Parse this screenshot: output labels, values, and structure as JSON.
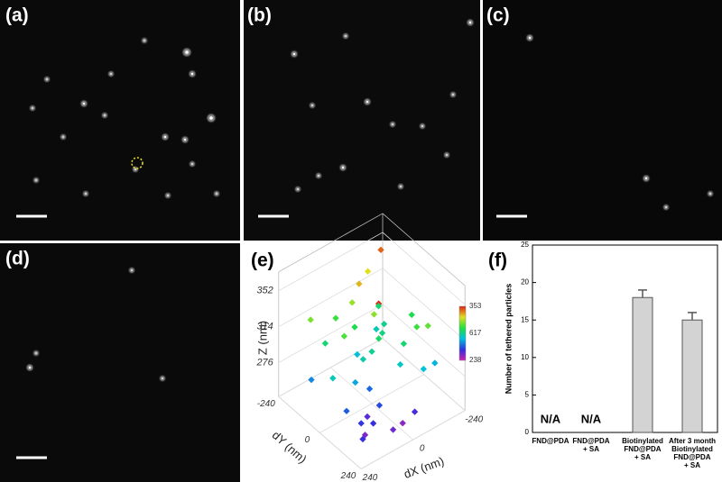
{
  "panels": [
    {
      "label": "(a)"
    },
    {
      "label": "(b)"
    },
    {
      "label": "(c)"
    },
    {
      "label": "(d)"
    },
    {
      "label": "(e)"
    },
    {
      "label": "(f)"
    }
  ],
  "chart_data": [
    {
      "type": "scatter3d",
      "zlabel": "Z (nm)",
      "ylabel": "dY (nm)",
      "xlabel": "dX (nm)",
      "xlim": [
        -240,
        240
      ],
      "ylim": [
        -240,
        240
      ],
      "zlim": [
        240,
        372
      ],
      "xticks": [
        -240,
        0,
        240
      ],
      "yticks": [
        -240,
        0,
        240
      ],
      "zticks": [
        276,
        314,
        352
      ],
      "colorbar_labels": [
        353,
        617,
        238
      ],
      "x": [
        -200,
        -150,
        -100,
        -50,
        0,
        50,
        100,
        150,
        200,
        -180,
        -120,
        -60,
        0,
        60,
        120,
        180,
        -160,
        -80,
        0,
        80,
        160,
        -140,
        -40,
        40,
        140,
        -100,
        20,
        100,
        -20,
        60,
        -200,
        200,
        -60,
        120,
        -120,
        0,
        180,
        -180,
        40,
        -40
      ],
      "y": [
        -200,
        -150,
        -100,
        -50,
        0,
        50,
        100,
        150,
        200,
        100,
        150,
        -150,
        -100,
        120,
        -120,
        0,
        60,
        -40,
        180,
        -60,
        140,
        -200,
        200,
        0,
        -180,
        60,
        -60,
        30,
        -140,
        200,
        -20,
        -100,
        90,
        160,
        -80,
        40,
        80,
        140,
        -160,
        -10
      ],
      "z": [
        345,
        300,
        290,
        320,
        295,
        270,
        255,
        250,
        260,
        315,
        285,
        335,
        305,
        265,
        300,
        290,
        310,
        298,
        248,
        312,
        262,
        330,
        258,
        292,
        318,
        300,
        285,
        280,
        322,
        252,
        305,
        275,
        288,
        260,
        296,
        352,
        268,
        282,
        310,
        302
      ]
    },
    {
      "type": "bar",
      "ylabel": "Number of tethered particles",
      "categories": [
        [
          "FND@PDA"
        ],
        [
          "FND@PDA",
          "+ SA"
        ],
        [
          "Biotinylated",
          "FND@PDA",
          "+ SA"
        ],
        [
          "After 3 month",
          "Biotinylated",
          "FND@PDA",
          "+ SA"
        ]
      ],
      "values": [
        null,
        null,
        18,
        15
      ],
      "value_labels": [
        "N/A",
        "N/A",
        null,
        null
      ],
      "errors": [
        null,
        null,
        1,
        1
      ],
      "color": "#d3d3d3",
      "ylim": [
        0,
        25
      ],
      "yticks": [
        0,
        5,
        10,
        15,
        20,
        25
      ]
    }
  ]
}
